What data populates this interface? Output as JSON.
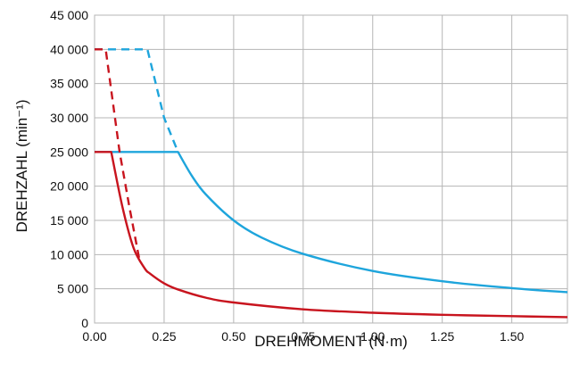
{
  "chart_data": {
    "type": "line",
    "title": "",
    "xlabel": "DREHMOMENT (N·m)",
    "ylabel": "DREHZAHL (min⁻¹)",
    "xlim": [
      0,
      1.7
    ],
    "ylim": [
      0,
      45000
    ],
    "xticks": [
      0,
      0.25,
      0.5,
      0.75,
      1.0,
      1.25,
      1.5
    ],
    "xtick_labels": [
      "0.00",
      "0.25",
      "0.50",
      "0.75",
      "1.00",
      "1.25",
      "1.50"
    ],
    "yticks": [
      0,
      5000,
      10000,
      15000,
      20000,
      25000,
      30000,
      35000,
      40000,
      45000
    ],
    "ytick_labels": [
      "0",
      "5 000",
      "10 000",
      "15 000",
      "20 000",
      "25 000",
      "30 000",
      "35 000",
      "40 000",
      "45 000"
    ],
    "grid": true,
    "legend": "none",
    "series": [
      {
        "color": "#1ea5dc",
        "style": "solid",
        "x": [
          0.0,
          0.3,
          0.35,
          0.4,
          0.5,
          0.6,
          0.75,
          1.0,
          1.25,
          1.5,
          1.7
        ],
        "y": [
          25000,
          25000,
          21500,
          18800,
          15000,
          12500,
          10100,
          7600,
          6100,
          5100,
          4500
        ]
      },
      {
        "color": "#1ea5dc",
        "style": "dashed",
        "x": [
          0.0,
          0.19,
          0.25,
          0.3
        ],
        "y": [
          40000,
          40000,
          30000,
          25000
        ]
      },
      {
        "color": "#c8141e",
        "style": "solid",
        "x": [
          0.0,
          0.06,
          0.1,
          0.14,
          0.18,
          0.2,
          0.25,
          0.3,
          0.4,
          0.5,
          0.75,
          1.0,
          1.25,
          1.5,
          1.7
        ],
        "y": [
          25000,
          25000,
          17000,
          11000,
          8000,
          7200,
          5800,
          4900,
          3700,
          3000,
          2000,
          1500,
          1200,
          1000,
          850
        ]
      },
      {
        "color": "#c8141e",
        "style": "dashed",
        "x": [
          0.0,
          0.04,
          0.09,
          0.125,
          0.16
        ],
        "y": [
          40000,
          40000,
          25000,
          17000,
          9500
        ]
      }
    ]
  }
}
